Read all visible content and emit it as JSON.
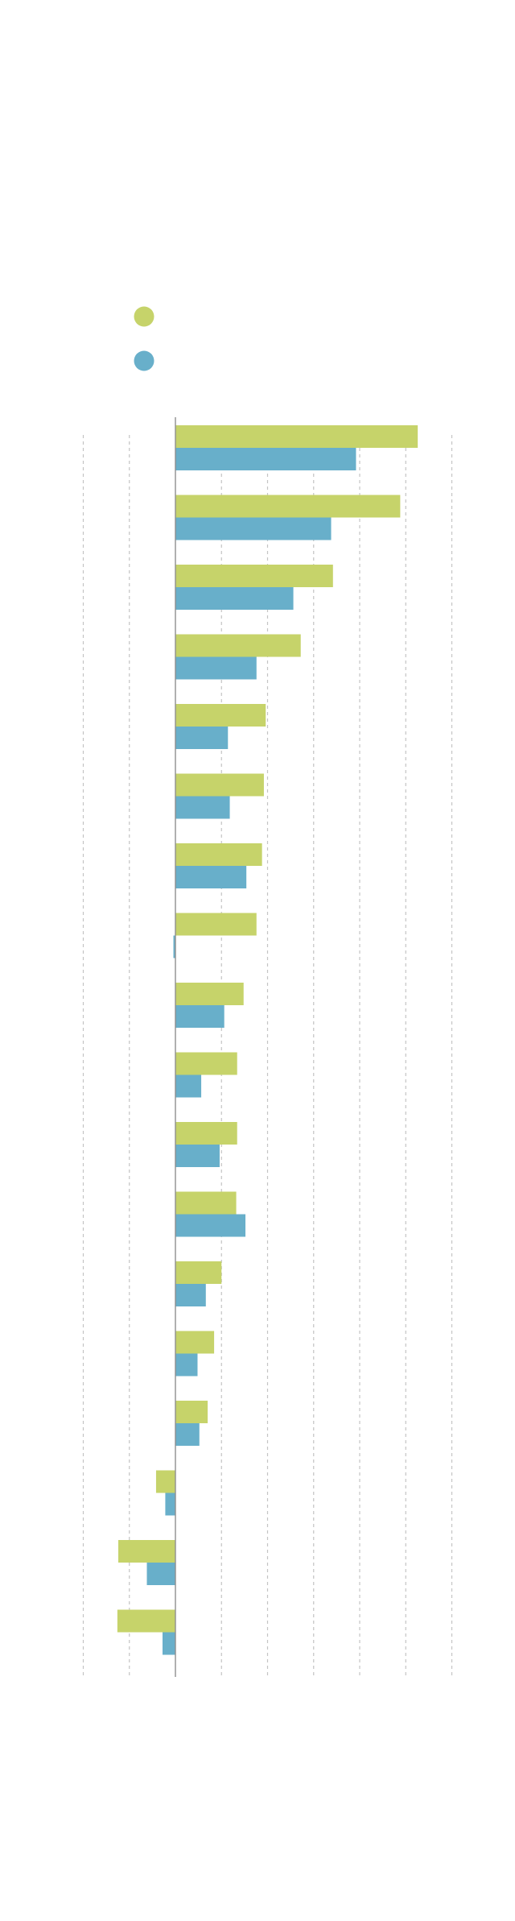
{
  "chart_data": {
    "type": "bar",
    "orientation": "horizontal",
    "title": "",
    "xlabel": "",
    "ylabel": "",
    "xlim": [
      -10,
      30
    ],
    "grid": true,
    "legend_position": "top-left",
    "categories": [
      "",
      "",
      "",
      "",
      "",
      "",
      "",
      "",
      "",
      "",
      "",
      "",
      "",
      "",
      "",
      "",
      "",
      ""
    ],
    "series": [
      {
        "color": "#c6d36a",
        "values": [
          26.3,
          24.4,
          17.1,
          13.6,
          9.8,
          9.6,
          9.4,
          8.8,
          7.4,
          6.7,
          6.7,
          6.6,
          5.0,
          4.2,
          3.5,
          -2.1,
          -6.2,
          -6.3
        ]
      },
      {
        "color": "#68afca",
        "values": [
          19.6,
          16.9,
          12.8,
          8.8,
          5.7,
          5.9,
          7.7,
          -0.2,
          5.3,
          2.8,
          4.8,
          7.6,
          3.3,
          2.4,
          2.6,
          -1.1,
          -3.1,
          -1.4
        ]
      }
    ]
  }
}
